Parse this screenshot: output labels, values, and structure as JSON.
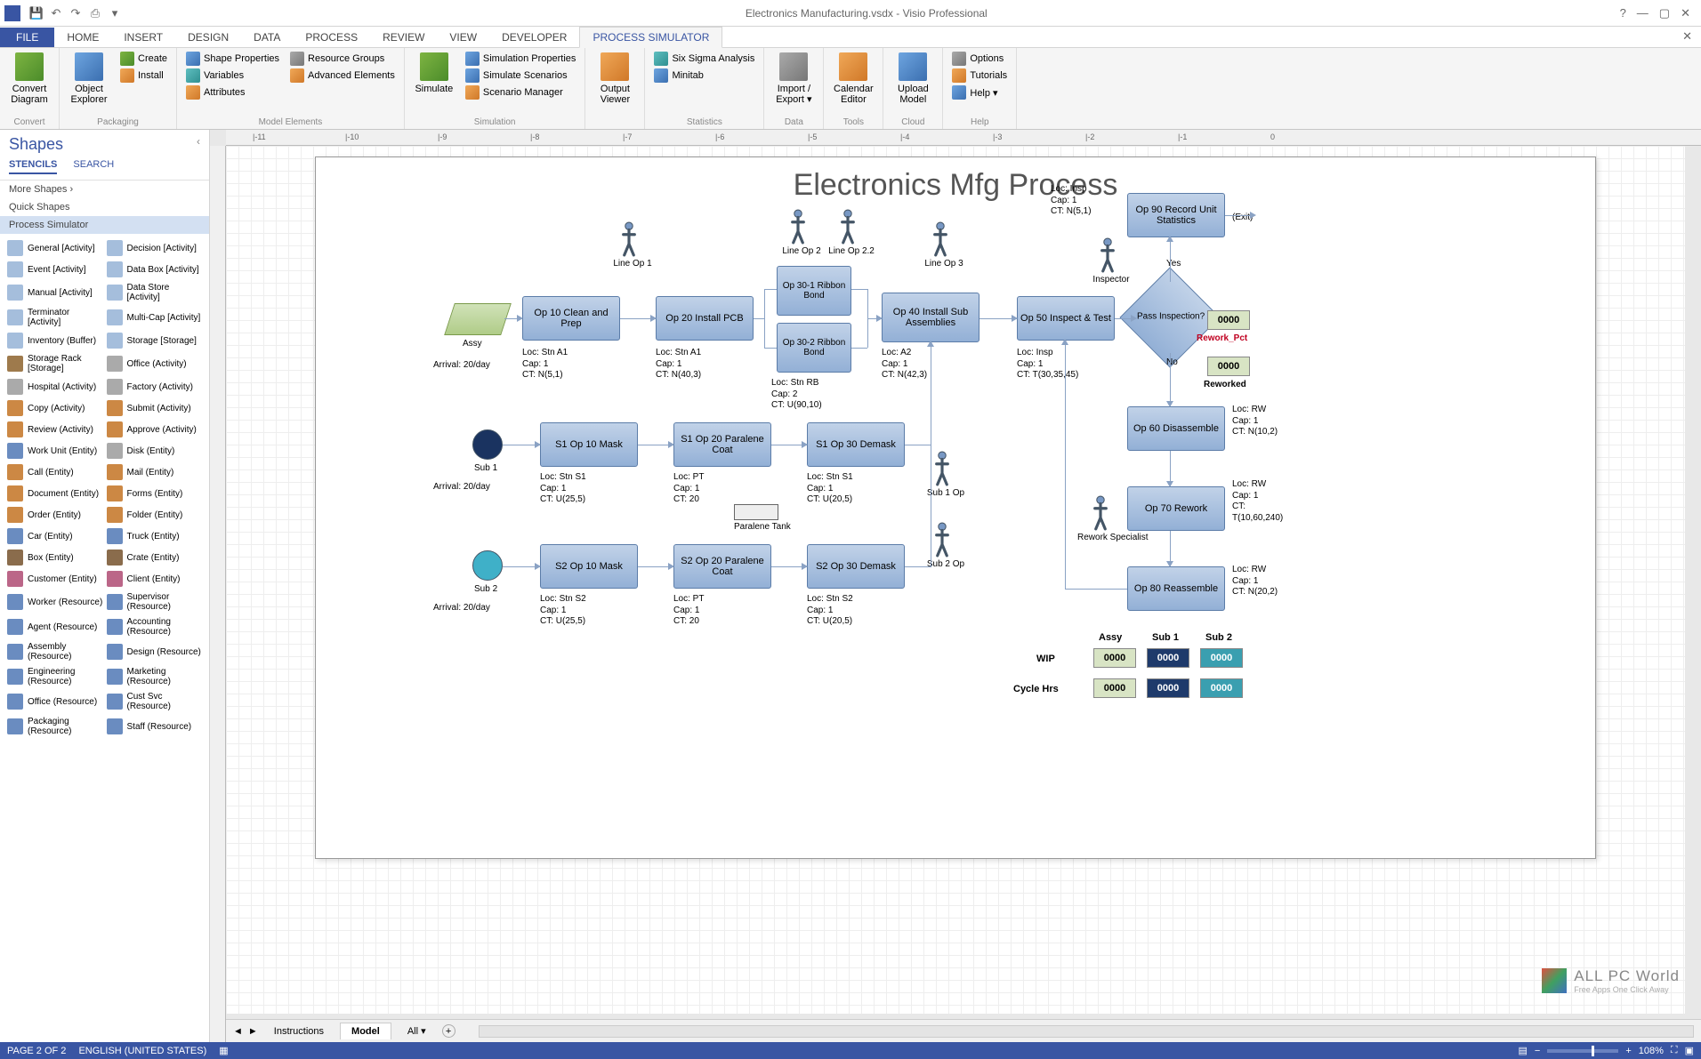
{
  "window": {
    "doctitle": "Electronics Manufacturing.vsdx - Visio Professional"
  },
  "qat": {
    "save": "💾",
    "undo": "↶",
    "redo": "↷",
    "more": "▾"
  },
  "tabs": {
    "file": "FILE",
    "list": [
      "HOME",
      "INSERT",
      "DESIGN",
      "DATA",
      "PROCESS",
      "REVIEW",
      "VIEW",
      "DEVELOPER",
      "PROCESS SIMULATOR"
    ],
    "activeIndex": 8
  },
  "ribbon": {
    "groups": [
      {
        "name": "Convert",
        "big": [
          {
            "label": "Convert Diagram",
            "ico": "green"
          }
        ]
      },
      {
        "name": "Packaging",
        "small": [
          {
            "label": "Create",
            "ico": "green"
          },
          {
            "label": "Install",
            "ico": "orange"
          }
        ],
        "big": [
          {
            "label": "Object Explorer",
            "ico": "blue"
          }
        ]
      },
      {
        "name": "Model Elements",
        "small": [
          {
            "label": "Shape Properties",
            "ico": "blue"
          },
          {
            "label": "Variables",
            "ico": "teal"
          },
          {
            "label": "Attributes",
            "ico": "orange"
          },
          {
            "label": "Resource Groups",
            "ico": "gray"
          },
          {
            "label": "Advanced Elements",
            "ico": "orange"
          }
        ]
      },
      {
        "name": "Simulation",
        "big": [
          {
            "label": "Simulate",
            "ico": "green"
          }
        ],
        "small": [
          {
            "label": "Simulation Properties",
            "ico": "blue"
          },
          {
            "label": "Simulate Scenarios",
            "ico": "blue"
          },
          {
            "label": "Scenario Manager",
            "ico": "orange"
          }
        ]
      },
      {
        "name": " ",
        "big": [
          {
            "label": "Output Viewer",
            "ico": "orange"
          }
        ]
      },
      {
        "name": "Statistics",
        "small": [
          {
            "label": "Six Sigma Analysis",
            "ico": "teal"
          },
          {
            "label": "Minitab",
            "ico": "blue"
          }
        ]
      },
      {
        "name": "Data",
        "big": [
          {
            "label": "Import / Export ▾",
            "ico": "gray"
          }
        ]
      },
      {
        "name": "Tools",
        "big": [
          {
            "label": "Calendar Editor",
            "ico": "orange"
          }
        ]
      },
      {
        "name": "Cloud",
        "big": [
          {
            "label": "Upload Model",
            "ico": "blue"
          }
        ]
      },
      {
        "name": "Help",
        "small": [
          {
            "label": "Options",
            "ico": "gray"
          },
          {
            "label": "Tutorials",
            "ico": "orange"
          },
          {
            "label": "Help ▾",
            "ico": "blue"
          }
        ]
      }
    ]
  },
  "ruler": [
    "|-11",
    "|-10",
    "|-9",
    "|-8",
    "|-7",
    "|-6",
    "|-5",
    "|-4",
    "|-3",
    "|-2",
    "|-1",
    "0"
  ],
  "shapes": {
    "title": "Shapes",
    "tabs": [
      "STENCILS",
      "SEARCH"
    ],
    "links": [
      "More Shapes   ›",
      "Quick Shapes",
      "Process Simulator"
    ],
    "selectedLink": 2,
    "items": [
      {
        "l": "General [Activity]",
        "ico": "#a5bedc"
      },
      {
        "l": "Decision [Activity]",
        "ico": "#a5bedc"
      },
      {
        "l": "Event [Activity]",
        "ico": "#a5bedc"
      },
      {
        "l": "Data Box [Activity]",
        "ico": "#a5bedc"
      },
      {
        "l": "Manual [Activity]",
        "ico": "#a5bedc"
      },
      {
        "l": "Data Store [Activity]",
        "ico": "#a5bedc"
      },
      {
        "l": "Terminator [Activity]",
        "ico": "#a5bedc"
      },
      {
        "l": "Multi-Cap [Activity]",
        "ico": "#a5bedc"
      },
      {
        "l": "Inventory (Buffer)",
        "ico": "#a5bedc"
      },
      {
        "l": "Storage [Storage]",
        "ico": "#a5bedc"
      },
      {
        "l": "Storage Rack [Storage]",
        "ico": "#9e7a4c"
      },
      {
        "l": "Office (Activity)",
        "ico": "#aaaaaa"
      },
      {
        "l": "Hospital (Activity)",
        "ico": "#aaaaaa"
      },
      {
        "l": "Factory (Activity)",
        "ico": "#aaaaaa"
      },
      {
        "l": "Copy (Activity)",
        "ico": "#cc8844"
      },
      {
        "l": "Submit (Activity)",
        "ico": "#cc8844"
      },
      {
        "l": "Review (Activity)",
        "ico": "#cc8844"
      },
      {
        "l": "Approve (Activity)",
        "ico": "#cc8844"
      },
      {
        "l": "Work Unit (Entity)",
        "ico": "#6a8cc0"
      },
      {
        "l": "Disk (Entity)",
        "ico": "#aaaaaa"
      },
      {
        "l": "Call (Entity)",
        "ico": "#cc8844"
      },
      {
        "l": "Mail (Entity)",
        "ico": "#cc8844"
      },
      {
        "l": "Document (Entity)",
        "ico": "#cc8844"
      },
      {
        "l": "Forms (Entity)",
        "ico": "#cc8844"
      },
      {
        "l": "Order (Entity)",
        "ico": "#cc8844"
      },
      {
        "l": "Folder (Entity)",
        "ico": "#cc8844"
      },
      {
        "l": "Car (Entity)",
        "ico": "#6a8cc0"
      },
      {
        "l": "Truck (Entity)",
        "ico": "#6a8cc0"
      },
      {
        "l": "Box (Entity)",
        "ico": "#8a6c4c"
      },
      {
        "l": "Crate (Entity)",
        "ico": "#8a6c4c"
      },
      {
        "l": "Customer (Entity)",
        "ico": "#bb6688"
      },
      {
        "l": "Client (Entity)",
        "ico": "#bb6688"
      },
      {
        "l": "Worker (Resource)",
        "ico": "#6a8cc0"
      },
      {
        "l": "Supervisor (Resource)",
        "ico": "#6a8cc0"
      },
      {
        "l": "Agent (Resource)",
        "ico": "#6a8cc0"
      },
      {
        "l": "Accounting (Resource)",
        "ico": "#6a8cc0"
      },
      {
        "l": "Assembly (Resource)",
        "ico": "#6a8cc0"
      },
      {
        "l": "Design (Resource)",
        "ico": "#6a8cc0"
      },
      {
        "l": "Engineering (Resource)",
        "ico": "#6a8cc0"
      },
      {
        "l": "Marketing (Resource)",
        "ico": "#6a8cc0"
      },
      {
        "l": "Office (Resource)",
        "ico": "#6a8cc0"
      },
      {
        "l": "Cust Svc (Resource)",
        "ico": "#6a8cc0"
      },
      {
        "l": "Packaging (Resource)",
        "ico": "#6a8cc0"
      },
      {
        "l": "Staff (Resource)",
        "ico": "#6a8cc0"
      }
    ]
  },
  "flow": {
    "title": "Electronics Mfg Process",
    "insp_note": "Loc: Insp\nCap: 1\nCT: N(5,1)",
    "boxes": {
      "op10": "Op 10\nClean and Prep",
      "op20": "Op 20\nInstall PCB",
      "op30a": "Op 30-1\nRibbon\nBond",
      "op30b": "Op 30-2\nRibbon\nBond",
      "op40": "Op 40\nInstall Sub Assemblies",
      "op50": "Op 50\nInspect & Test",
      "op60": "Op 60\nDisassemble",
      "op70": "Op 70\nRework",
      "op80": "Op 80\nReassemble",
      "op90": "Op 90 Record\nUnit Statistics",
      "s1a": "S1 Op 10\nMask",
      "s1b": "S1 Op 20\nParalene Coat",
      "s1c": "S1 Op 30\nDemask",
      "s2a": "S2 Op 10\nMask",
      "s2b": "S2 Op 20\nParalene Coat",
      "s2c": "S2 Op 30\nDemask",
      "diamond": "Pass\nInspection?"
    },
    "persons": {
      "op1": "Line Op 1",
      "op2": "Line Op 2",
      "op22": "Line Op 2.2",
      "op3": "Line Op 3",
      "insp": "Inspector",
      "rspec": "Rework\nSpecialist",
      "sub1": "Sub 1 Op",
      "sub2": "Sub 2 Op"
    },
    "entities": {
      "assy": "Assy",
      "sub1": "Sub 1",
      "sub2": "Sub 2",
      "tank": "Paralene\nTank"
    },
    "arrivals": {
      "a1": "Arrival: 20/day",
      "a2": "Arrival: 20/day",
      "a3": "Arrival: 20/day"
    },
    "notes": {
      "n1": "Loc: Stn A1\nCap: 1\nCT: N(5,1)",
      "n2": "Loc: Stn A1\nCap: 1\nCT: N(40,3)",
      "n3": "Loc: Stn RB\nCap: 2\nCT: U(90,10)",
      "n4": "Loc: A2\nCap: 1\nCT: N(42,3)",
      "n5": "Loc: Insp\nCap: 1\nCT: T(30,35,45)",
      "n6": "Loc: RW\nCap: 1\nCT: N(10,2)",
      "n7": "Loc: RW\nCap: 1\nCT:\nT(10,60,240)",
      "n8": "Loc: RW\nCap: 1\nCT: N(20,2)",
      "s1a": "Loc: Stn S1\nCap: 1\nCT: U(25,5)",
      "s1b": "Loc: PT\nCap: 1\nCT: 20",
      "s1c": "Loc: Stn S1\nCap: 1\nCT: U(20,5)",
      "s2a": "Loc: Stn S2\nCap: 1\nCT: U(25,5)",
      "s2b": "Loc: PT\nCap: 1\nCT: 20",
      "s2c": "Loc: Stn S2\nCap: 1\nCT: U(20,5)"
    },
    "edges": {
      "yes": "Yes",
      "no": "No",
      "exit": "(Exit)"
    },
    "counters": {
      "rework_pct": "0000",
      "rework_pct_label": "Rework_Pct",
      "reworked": "0000",
      "reworked_label": "Reworked",
      "cols": [
        "Assy",
        "Sub 1",
        "Sub 2"
      ],
      "rows": [
        "WIP",
        "Cycle Hrs"
      ],
      "vals": [
        [
          "0000",
          "0000",
          "0000"
        ],
        [
          "0000",
          "0000",
          "0000"
        ]
      ]
    }
  },
  "sheets": {
    "tabs": [
      "Instructions",
      "Model",
      "All ▾"
    ],
    "active": 1
  },
  "status": {
    "page": "PAGE 2 OF 2",
    "lang": "ENGLISH (UNITED STATES)",
    "zoom": "108%"
  },
  "wm": {
    "t": "ALL PC World",
    "s": "Free Apps One Click Away"
  }
}
